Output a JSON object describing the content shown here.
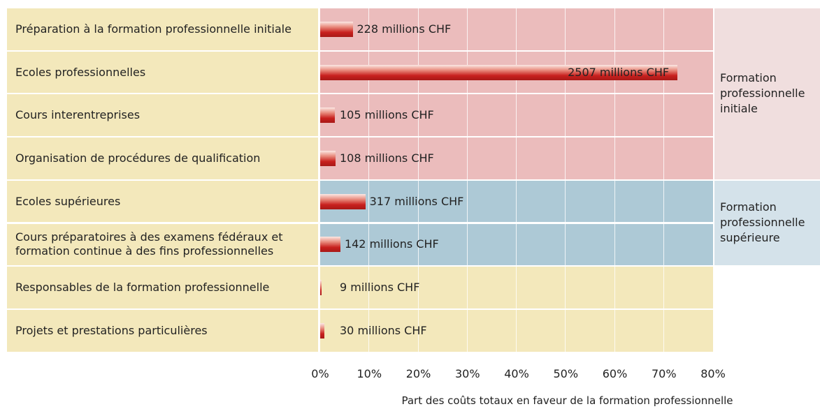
{
  "chart_data": {
    "type": "bar",
    "orientation": "horizontal",
    "categories": [
      "Préparation à la formation professionnelle initiale",
      "Ecoles professionnelles",
      "Cours interentreprises",
      "Organisation de procédures de qualification",
      "Ecoles supérieures",
      "Cours préparatoires à des examens fédéraux et formation continue à des fins professionnelles",
      "Responsables de la formation professionnelle",
      "Projets et prestations particulières"
    ],
    "values": [
      6.62,
      72.75,
      3.05,
      3.13,
      9.2,
      4.12,
      0.26,
      0.87
    ],
    "value_labels": [
      "228 millions CHF",
      "2507 millions CHF",
      "105 millions CHF",
      "108 millions CHF",
      "317 millions CHF",
      "142 millions CHF",
      "9 millions CHF",
      "30 millions CHF"
    ],
    "color": "#c8201e",
    "groups": [
      {
        "name": "Formation professionnelle initiale"
      },
      {
        "name": "Formation professionnelle supérieure"
      }
    ],
    "xlim": [
      0,
      80
    ],
    "xticks": [
      {
        "value": 0,
        "label": "0%"
      },
      {
        "value": 10,
        "label": "10%"
      },
      {
        "value": 20,
        "label": "20%"
      },
      {
        "value": 30,
        "label": "30%"
      },
      {
        "value": 40,
        "label": "40%"
      },
      {
        "value": 50,
        "label": "50%"
      },
      {
        "value": 60,
        "label": "60%"
      },
      {
        "value": 70,
        "label": "70%"
      },
      {
        "value": 80,
        "label": "80%"
      }
    ],
    "xlabel": "Part des coûts totaux en faveur de la formation professionnelle",
    "grid": true
  }
}
